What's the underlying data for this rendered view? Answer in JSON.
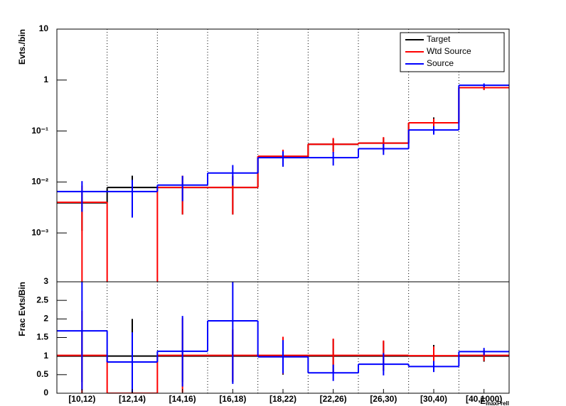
{
  "chart_data": [
    {
      "type": "step",
      "log_y": true,
      "grid_x": true,
      "ylabel": "Evts./bin",
      "legend": "top-right",
      "ylim": [
        0.00011,
        10
      ],
      "yticks": [
        {
          "value": 0.001,
          "label": "10⁻³"
        },
        {
          "value": 0.01,
          "label": "10⁻²"
        },
        {
          "value": 0.1,
          "label": "10⁻¹"
        },
        1,
        10
      ],
      "series": [
        {
          "name": "Target",
          "color": "#000000",
          "values": [
            0.0039,
            0.0078,
            0.0078,
            0.0078,
            0.031,
            0.055,
            0.058,
            0.145,
            0.71
          ],
          "errors": [
            0.0028,
            0.0055,
            0.0055,
            0.0055,
            0.011,
            0.015,
            0.016,
            0.04,
            0.07
          ]
        },
        {
          "name": "Wtd Source",
          "color": "#ff0000",
          "values": [
            0.004,
            0,
            0.0078,
            0.0078,
            0.032,
            0.055,
            0.058,
            0.145,
            0.71
          ],
          "errors": [
            0.0045,
            0,
            0.0055,
            0.0055,
            0.011,
            0.018,
            0.018,
            0.03,
            0.07
          ]
        },
        {
          "name": "Source",
          "color": "#0000ff",
          "values": [
            0.0065,
            0.0065,
            0.0087,
            0.015,
            0.03,
            0.03,
            0.045,
            0.105,
            0.79
          ],
          "errors": [
            0.0039,
            0.0045,
            0.0045,
            0.0065,
            0.01,
            0.009,
            0.011,
            0.02,
            0.07
          ]
        }
      ]
    },
    {
      "type": "step",
      "log_y": false,
      "grid_x": true,
      "ylabel": "Frac Evts/Bin",
      "categories": [
        "[10,12)",
        "[12,14)",
        "[14,16)",
        "[16,18)",
        "[18,22)",
        "[22,26)",
        "[26,30)",
        "[30,40)",
        "[40,1000)"
      ],
      "xlabel": "E",
      "xlabel_sub": "maxFrell",
      "ylim": [
        0,
        3
      ],
      "yticks": [
        0,
        0.5,
        1,
        1.5,
        2,
        2.5,
        3
      ],
      "series": [
        {
          "color": "#000000",
          "values": [
            1,
            1,
            1,
            1,
            1,
            1,
            1,
            1,
            1
          ],
          "errors": [
            0.7,
            1,
            0.7,
            0.7,
            0.5,
            0.45,
            0.4,
            0.3,
            0.15
          ]
        },
        {
          "color": "#ff0000",
          "values": [
            1.02,
            0,
            1.02,
            1.02,
            1.02,
            1.02,
            1.02,
            1.01,
            1.02
          ],
          "errors": [
            1.2,
            0,
            1,
            0.7,
            0.5,
            0.45,
            0.4,
            0.25,
            0.15
          ]
        },
        {
          "color": "#0000ff",
          "values": [
            1.68,
            0.84,
            1.13,
            1.95,
            0.98,
            0.55,
            0.78,
            0.72,
            1.12
          ],
          "errors": [
            1.6,
            0.8,
            0.95,
            1.7,
            0.45,
            0.22,
            0.3,
            0.15,
            0.1
          ]
        }
      ]
    }
  ]
}
